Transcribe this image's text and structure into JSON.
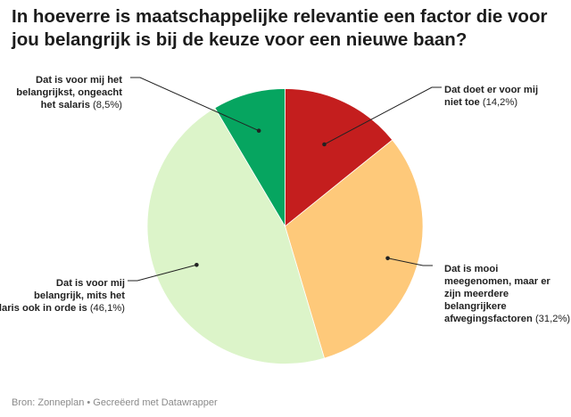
{
  "title": "In hoeverre is maatschappelijke relevantie een factor die voor jou belangrijk is bij de keuze voor een nieuwe baan?",
  "footer": "Bron: Zonneplan • Gecreëerd met Datawrapper",
  "chart_data": {
    "type": "pie",
    "title": "In hoeverre is maatschappelijke relevantie een factor die voor jou belangrijk is bij de keuze voor een nieuwe baan?",
    "slices": [
      {
        "label": "Dat doet er voor mij niet toe",
        "value": 14.2,
        "value_label": "(14,2%)",
        "color": "#c41e1e",
        "label_lines": [
          "Dat doet er voor mij",
          "niet toe"
        ]
      },
      {
        "label": "Dat is mooi meegenomen, maar er zijn meerdere belangrijkere afwegingsfactoren",
        "value": 31.2,
        "value_label": "(31,2%)",
        "color": "#fec97a",
        "label_lines": [
          "Dat is mooi",
          "meegenomen, maar er",
          "zijn meerdere",
          "belangrijkere",
          "afwegingsfactoren"
        ]
      },
      {
        "label": "Dat is voor mij belangrijk, mits het salaris ook in orde is",
        "value": 46.1,
        "value_label": "(46,1%)",
        "color": "#dcf4c9",
        "label_lines": [
          "Dat is voor mij",
          "belangrijk, mits het",
          "salaris ook in orde is"
        ]
      },
      {
        "label": "Dat is voor mij het belangrijkst, ongeacht het salaris",
        "value": 8.5,
        "value_label": "(8,5%)",
        "color": "#06a560",
        "label_lines": [
          "Dat is voor mij het",
          "belangrijkst, ongeacht",
          "het salaris"
        ]
      }
    ]
  }
}
